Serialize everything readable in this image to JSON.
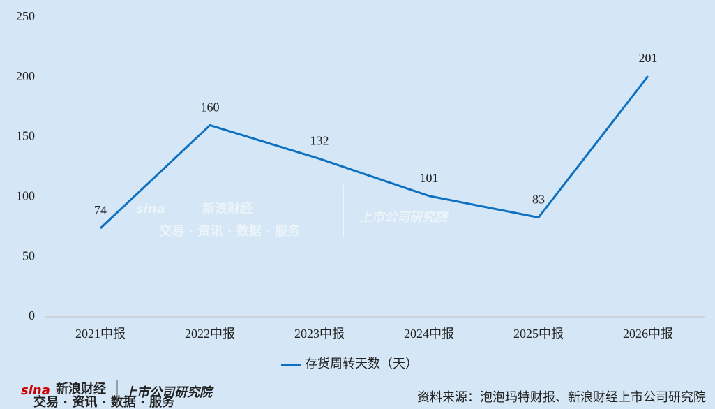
{
  "chart_data": {
    "type": "line",
    "categories": [
      "2021中报",
      "2022中报",
      "2023中报",
      "2024中报",
      "2025中报",
      "2026中报"
    ],
    "series": [
      {
        "name": "存货周转天数（天）",
        "color": "#0e70c0",
        "values": [
          74,
          160,
          132,
          101,
          83,
          201
        ]
      }
    ],
    "ylim": [
      0,
      250
    ],
    "yticks": [
      0,
      50,
      100,
      150,
      200,
      250
    ],
    "grid": false,
    "legend": "bottom",
    "source": "资料来源：泡泡玛特财报、新浪财经上市公司研究院",
    "brand": {
      "sina": "sina",
      "name": "新浪财经",
      "tagline": "交易 · 资讯 · 数据 · 服务",
      "institute": "上市公司研究院"
    }
  }
}
